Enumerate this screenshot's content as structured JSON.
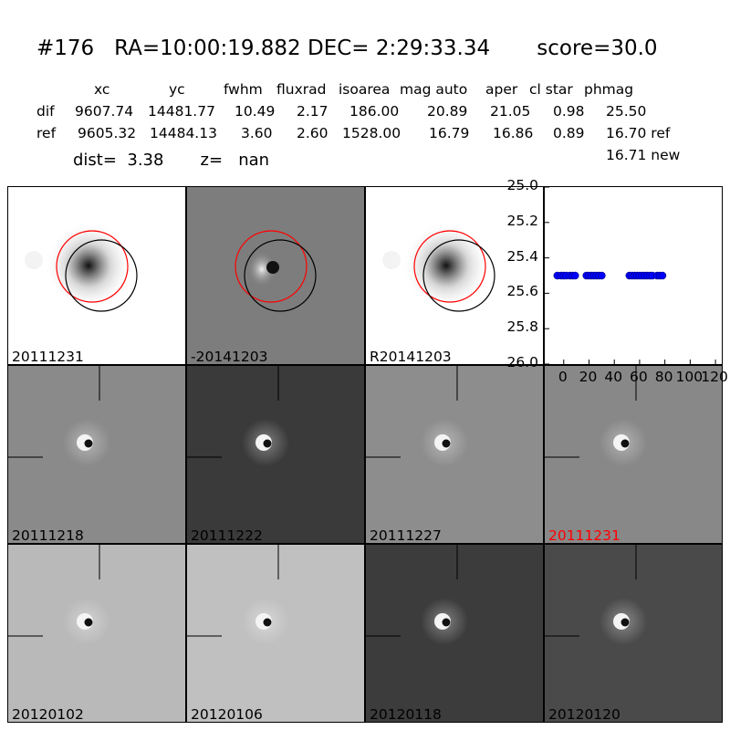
{
  "header": {
    "title": "#176   RA=10:00:19.882 DEC= 2:29:33.34       score=30.0",
    "columns": [
      "xc",
      "yc",
      "fwhm",
      "fluxrad",
      "isoarea",
      "mag auto",
      "aper",
      "cl star",
      "phmag"
    ],
    "rows": [
      {
        "label": "dif",
        "values": [
          "9607.74",
          "14481.77",
          "10.49",
          "2.17",
          "186.00",
          "20.89",
          "21.05",
          "0.98",
          "25.50"
        ]
      },
      {
        "label": "ref",
        "values": [
          "9605.32",
          "14484.13",
          "3.60",
          "2.60",
          "1528.00",
          "16.79",
          "16.86",
          "0.89",
          "16.70 ref"
        ]
      }
    ],
    "extra_phmag": "16.71 new",
    "dist_line": "dist=  3.38       z=   nan"
  },
  "panels": [
    {
      "label": "20111231",
      "kind": "ref-star",
      "bg": "#ffffff",
      "circles": true
    },
    {
      "label": "-20141203",
      "kind": "diff",
      "bg": "#7d7d7d",
      "circles": true
    },
    {
      "label": "R20141203",
      "kind": "ref-star",
      "bg": "#ffffff",
      "circles": true
    },
    {
      "label": "20111218",
      "kind": "stamp",
      "bg": "#8a8a8a"
    },
    {
      "label": "20111222",
      "kind": "stamp",
      "bg": "#3a3a3a"
    },
    {
      "label": "20111227",
      "kind": "stamp",
      "bg": "#8d8d8d"
    },
    {
      "label": "20111231",
      "kind": "stamp",
      "bg": "#888888",
      "highlight": true
    },
    {
      "label": "20120102",
      "kind": "stamp",
      "bg": "#b9b9b9"
    },
    {
      "label": "20120106",
      "kind": "stamp",
      "bg": "#c0c0c0"
    },
    {
      "label": "20120118",
      "kind": "stamp",
      "bg": "#3c3c3c"
    },
    {
      "label": "20120120",
      "kind": "stamp",
      "bg": "#4a4a4a"
    }
  ],
  "colors": {
    "circle_a": "#ff0000",
    "circle_b": "#000000",
    "points": "#0000ff",
    "highlight_label": "#ff0000"
  },
  "chart_data": {
    "type": "scatter",
    "title": "",
    "xlabel": "",
    "ylabel": "",
    "xlim": [
      -15,
      125
    ],
    "ylim": [
      26.0,
      25.0
    ],
    "y_inverted": true,
    "xticks": [
      "0",
      "20",
      "40",
      "60",
      "80",
      "100",
      "120"
    ],
    "yticks": [
      "25.0",
      "25.2",
      "25.4",
      "25.6",
      "25.8",
      "26.0"
    ],
    "series": [
      {
        "x": [
          -5,
          -2,
          0,
          2,
          5,
          7,
          9,
          18,
          20,
          22,
          24,
          26,
          28,
          30,
          52,
          54,
          56,
          58,
          60,
          62,
          64,
          66,
          68,
          70,
          74,
          76,
          78
        ],
        "y": [
          25.5,
          25.5,
          25.5,
          25.5,
          25.5,
          25.5,
          25.5,
          25.5,
          25.5,
          25.5,
          25.5,
          25.5,
          25.5,
          25.5,
          25.5,
          25.5,
          25.5,
          25.5,
          25.5,
          25.5,
          25.5,
          25.5,
          25.5,
          25.5,
          25.5,
          25.5,
          25.5
        ]
      }
    ]
  }
}
